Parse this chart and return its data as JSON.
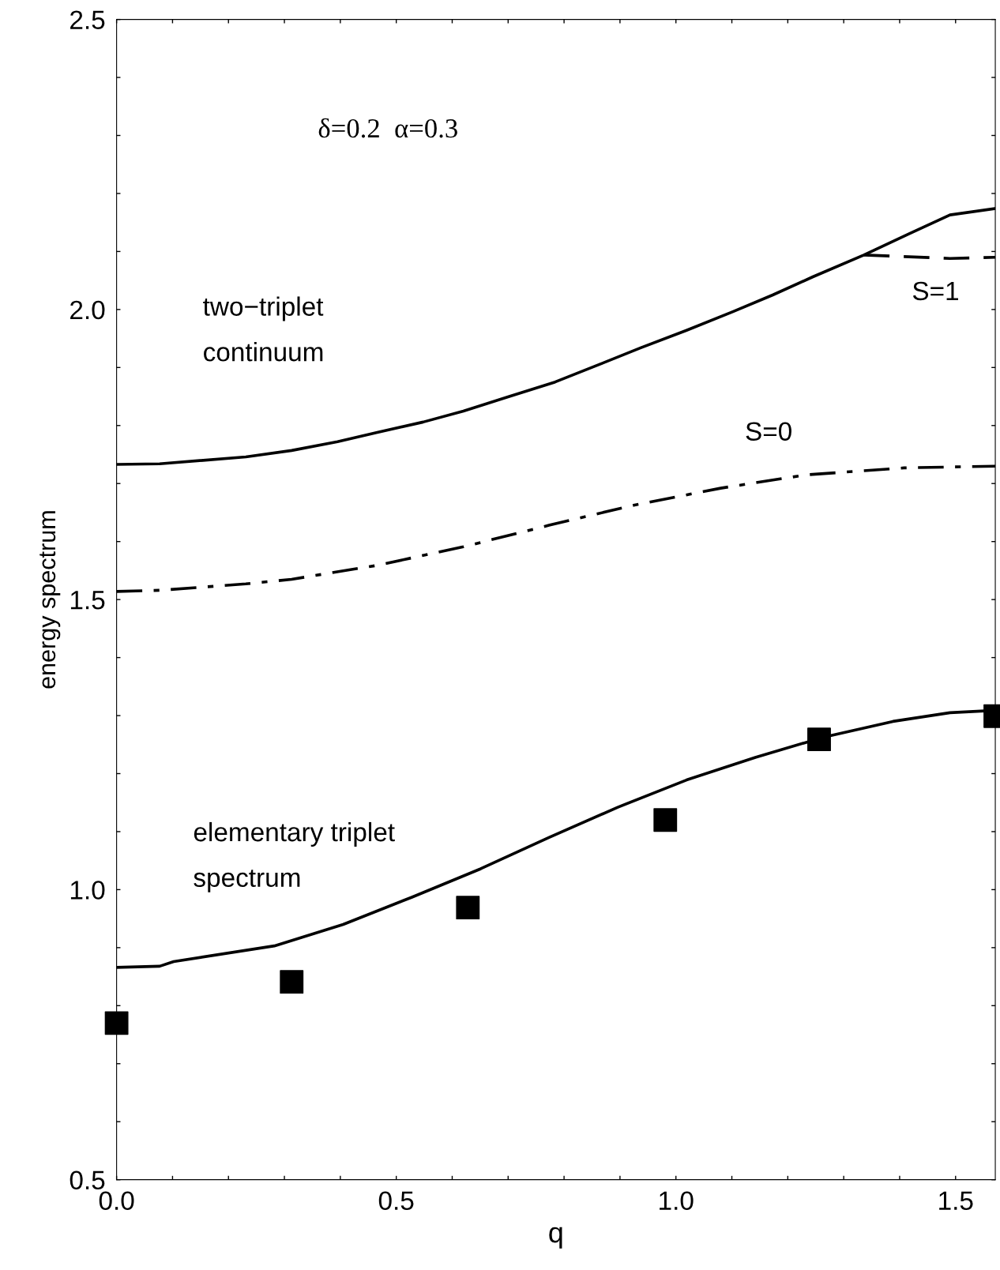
{
  "chart_data": {
    "type": "line",
    "xlabel": "q",
    "ylabel": "energy spectrum",
    "xlim": [
      0,
      1.571
    ],
    "ylim": [
      0.5,
      2.5
    ],
    "xticks": [
      {
        "value": 0.0,
        "label": "0.0"
      },
      {
        "value": 0.1,
        "label": null
      },
      {
        "value": 0.2,
        "label": null
      },
      {
        "value": 0.3,
        "label": null
      },
      {
        "value": 0.4,
        "label": null
      },
      {
        "value": 0.5,
        "label": "0.5"
      },
      {
        "value": 0.6,
        "label": null
      },
      {
        "value": 0.7,
        "label": null
      },
      {
        "value": 0.8,
        "label": null
      },
      {
        "value": 0.9,
        "label": null
      },
      {
        "value": 1.0,
        "label": "1.0"
      },
      {
        "value": 1.1,
        "label": null
      },
      {
        "value": 1.2,
        "label": null
      },
      {
        "value": 1.3,
        "label": null
      },
      {
        "value": 1.4,
        "label": null
      },
      {
        "value": 1.5,
        "label": "1.5"
      }
    ],
    "yticks": [
      {
        "value": 0.5,
        "label": "0.5"
      },
      {
        "value": 0.6,
        "label": null
      },
      {
        "value": 0.7,
        "label": null
      },
      {
        "value": 0.8,
        "label": null
      },
      {
        "value": 0.9,
        "label": null
      },
      {
        "value": 1.0,
        "label": "1.0"
      },
      {
        "value": 1.1,
        "label": null
      },
      {
        "value": 1.2,
        "label": null
      },
      {
        "value": 1.3,
        "label": null
      },
      {
        "value": 1.4,
        "label": null
      },
      {
        "value": 1.5,
        "label": "1.5"
      },
      {
        "value": 1.6,
        "label": null
      },
      {
        "value": 1.7,
        "label": null
      },
      {
        "value": 1.8,
        "label": null
      },
      {
        "value": 1.9,
        "label": null
      },
      {
        "value": 2.0,
        "label": "2.0"
      },
      {
        "value": 2.1,
        "label": null
      },
      {
        "value": 2.2,
        "label": null
      },
      {
        "value": 2.3,
        "label": null
      },
      {
        "value": 2.4,
        "label": null
      },
      {
        "value": 2.5,
        "label": "2.5"
      }
    ],
    "grid": false,
    "annotations": [
      "δ=0.2  α=0.3",
      "two−triplet\ncontinuum",
      "S=1",
      "S=0",
      "elementary triplet\nspectrum"
    ],
    "series": [
      {
        "color": "#000000",
        "line_style": "solid",
        "x": [
          0,
          0.077,
          0.231,
          0.313,
          0.395,
          0.466,
          0.548,
          0.62,
          0.702,
          0.784,
          0.865,
          0.937,
          1.019,
          1.101,
          1.173,
          1.244,
          1.336,
          1.418,
          1.49,
          1.571
        ],
        "values": [
          1.733,
          1.734,
          1.746,
          1.757,
          1.772,
          1.788,
          1.806,
          1.825,
          1.85,
          1.875,
          1.906,
          1.934,
          1.964,
          1.996,
          2.025,
          2.056,
          2.094,
          2.131,
          2.163,
          2.174
        ]
      },
      {
        "color": "#000000",
        "line_style": "dashed",
        "x": [
          1.336,
          1.49,
          1.571
        ],
        "values": [
          2.094,
          2.088,
          2.09
        ]
      },
      {
        "color": "#000000",
        "line_style": "dashdot",
        "x": [
          0,
          0.077,
          0.231,
          0.313,
          0.466,
          0.62,
          0.773,
          0.926,
          1.08,
          1.233,
          1.408,
          1.571
        ],
        "values": [
          1.514,
          1.516,
          1.527,
          1.535,
          1.559,
          1.591,
          1.628,
          1.663,
          1.692,
          1.715,
          1.727,
          1.73
        ]
      },
      {
        "color": "#000000",
        "line_style": "solid",
        "x": [
          0,
          0.077,
          0.102,
          0.282,
          0.405,
          0.528,
          0.651,
          0.773,
          0.896,
          1.019,
          1.142,
          1.265,
          1.388,
          1.49,
          1.571
        ],
        "values": [
          0.866,
          0.868,
          0.876,
          0.903,
          0.94,
          0.987,
          1.036,
          1.09,
          1.142,
          1.189,
          1.228,
          1.263,
          1.29,
          1.305,
          1.309
        ]
      },
      {
        "type": "scatter",
        "color": "#000000",
        "marker": "square",
        "x": [
          0,
          0.313,
          0.628,
          0.981,
          1.256,
          1.571
        ],
        "values": [
          0.77,
          0.841,
          0.969,
          1.12,
          1.259,
          1.299
        ]
      }
    ]
  }
}
